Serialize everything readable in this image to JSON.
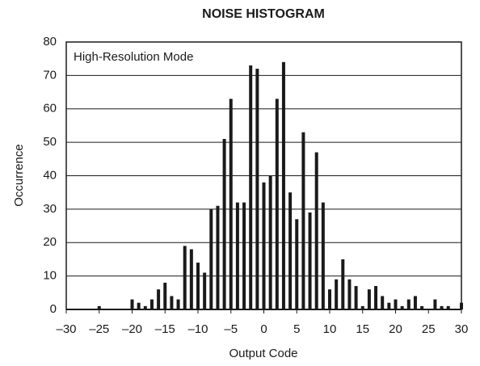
{
  "chart_data": {
    "type": "bar",
    "title": "NOISE HISTOGRAM",
    "annotation": "High-Resolution Mode",
    "xlabel": "Output Code",
    "ylabel": "Occurrence",
    "color": "#1a1a1a",
    "grid": true,
    "x": [
      -30,
      -29,
      -28,
      -27,
      -26,
      -25,
      -24,
      -23,
      -22,
      -21,
      -20,
      -19,
      -18,
      -17,
      -16,
      -15,
      -14,
      -13,
      -12,
      -11,
      -10,
      -9,
      -8,
      -7,
      -6,
      -5,
      -4,
      -3,
      -2,
      -1,
      0,
      1,
      2,
      3,
      4,
      5,
      6,
      7,
      8,
      9,
      10,
      11,
      12,
      13,
      14,
      15,
      16,
      17,
      18,
      19,
      20,
      21,
      22,
      23,
      24,
      25,
      26,
      27,
      28,
      29,
      30
    ],
    "values": [
      0,
      0,
      0,
      0,
      0,
      1,
      0,
      0,
      0,
      0,
      3,
      2,
      1,
      3,
      6,
      8,
      4,
      3,
      19,
      18,
      14,
      11,
      30,
      31,
      51,
      63,
      32,
      32,
      73,
      72,
      38,
      40,
      63,
      74,
      35,
      27,
      53,
      29,
      47,
      32,
      6,
      9,
      15,
      9,
      7,
      1,
      6,
      7,
      4,
      2,
      3,
      1,
      3,
      4,
      1,
      0,
      3,
      1,
      1,
      0,
      2
    ],
    "xlim": [
      -30,
      30
    ],
    "xticks": [
      {
        "value": -30,
        "label": "–30"
      },
      {
        "value": -25,
        "label": "–25"
      },
      {
        "value": -20,
        "label": "–20"
      },
      {
        "value": -15,
        "label": "–15"
      },
      {
        "value": -10,
        "label": "–10"
      },
      {
        "value": -5,
        "label": "–5"
      },
      0,
      5,
      10,
      15,
      20,
      25,
      30
    ],
    "ylim": [
      0,
      80
    ],
    "yticks": [
      0,
      10,
      20,
      30,
      40,
      50,
      60,
      70,
      80
    ]
  }
}
